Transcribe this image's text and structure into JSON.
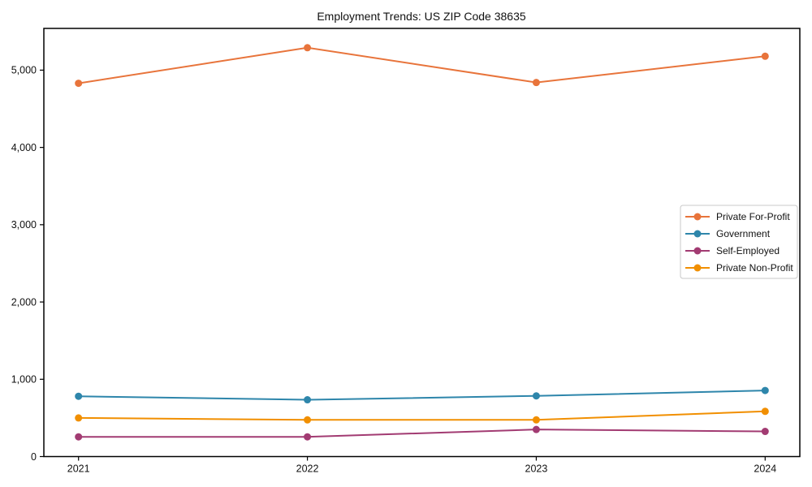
{
  "figure": {
    "background": "#ffffff",
    "axis_color": "#000000"
  },
  "chart_data": {
    "type": "line",
    "title": "Employment Trends: US ZIP Code 38635",
    "categories": [
      "2021",
      "2022",
      "2023",
      "2024"
    ],
    "series": [
      {
        "name": "Private For-Profit",
        "color": "#E8743B",
        "values": [
          4830,
          5290,
          4840,
          5180
        ]
      },
      {
        "name": "Government",
        "color": "#2E86AB",
        "values": [
          780,
          735,
          785,
          855
        ]
      },
      {
        "name": "Self-Employed",
        "color": "#A23B72",
        "values": [
          255,
          255,
          350,
          325
        ]
      },
      {
        "name": "Private Non-Profit",
        "color": "#F18F01",
        "values": [
          500,
          475,
          475,
          585
        ]
      }
    ],
    "xlabel": "",
    "ylabel": "",
    "ylim": [
      0,
      5540
    ],
    "yticks": [
      0,
      1000,
      2000,
      3000,
      4000,
      5000
    ],
    "ytick_labels": [
      "0",
      "1,000",
      "2,000",
      "3,000",
      "4,000",
      "5,000"
    ],
    "grid": false,
    "marker": "circle",
    "legend": {
      "position": "center-right",
      "entries": [
        "Private For-Profit",
        "Government",
        "Self-Employed",
        "Private Non-Profit"
      ]
    }
  }
}
